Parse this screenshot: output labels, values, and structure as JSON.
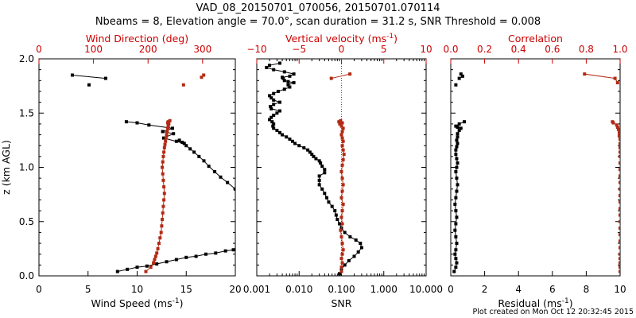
{
  "title_line1": "VAD_08_20150701_070056, 20150701.070114",
  "title_line2": "Nbeams = 8, Elevation angle = 70.0°, scan duration = 31.2 s, SNR Threshold = 0.008",
  "footer": "Plot created on Mon Oct 12 20:32:45 2015",
  "colors": {
    "black": "#000000",
    "red": "#b22a14",
    "axis_top": "#cc0000"
  },
  "chart_data": [
    {
      "type": "line",
      "panel": "wind",
      "ylabel": "z (km AGL)",
      "ylim": [
        0,
        2.0
      ],
      "yticks": [
        "0.0",
        "0.5",
        "1.0",
        "1.5",
        "2.0"
      ],
      "xlabel": "Wind Speed (ms",
      "xlabel_sup": "-1",
      "xlabel_end": ")",
      "xlim": [
        0,
        20
      ],
      "xticks": [
        "0",
        "5",
        "10",
        "15",
        "20"
      ],
      "top_label": "Wind Direction (deg)",
      "top_lim": [
        0,
        360
      ],
      "top_ticks": [
        "0",
        "100",
        "200",
        "300"
      ],
      "series": [
        {
          "color": "black",
          "x": [
            8.0,
            9.0,
            10.0,
            11.0,
            12.0,
            13.0,
            14.0,
            15.0,
            16.0,
            17.0,
            18.0,
            19.0,
            19.8,
            null,
            20.0,
            19.2,
            18.5,
            17.9,
            17.3,
            16.8,
            16.3,
            15.8,
            15.4,
            15.0,
            14.6,
            14.3,
            14.0,
            14.8,
            12.7,
            13.7,
            12.6,
            13.6,
            11.2,
            10.0,
            8.9,
            null,
            3.4,
            6.8,
            null,
            5.1
          ],
          "y": [
            0.04,
            0.06,
            0.08,
            0.09,
            0.11,
            0.13,
            0.15,
            0.17,
            0.18,
            0.2,
            0.21,
            0.23,
            0.24,
            null,
            0.8,
            0.86,
            0.91,
            0.96,
            1.01,
            1.06,
            1.1,
            1.14,
            1.17,
            1.2,
            1.23,
            1.25,
            1.24,
            1.22,
            1.27,
            1.31,
            1.33,
            1.36,
            1.39,
            1.41,
            1.42,
            null,
            1.85,
            1.82,
            null,
            1.76
          ]
        },
        {
          "color": "red",
          "x": [
            196,
            205,
            210,
            212,
            214,
            216,
            218,
            220,
            222,
            224,
            225,
            226,
            227,
            228,
            229,
            230,
            229,
            228,
            227,
            226,
            227,
            228,
            229,
            230,
            231,
            232,
            233,
            234,
            235,
            236,
            237,
            238,
            236,
            237,
            240,
            null,
            298,
            302,
            null,
            265
          ],
          "y": [
            0.04,
            0.08,
            0.12,
            0.15,
            0.18,
            0.21,
            0.25,
            0.3,
            0.35,
            0.4,
            0.46,
            0.52,
            0.58,
            0.64,
            0.7,
            0.76,
            0.82,
            0.88,
            0.94,
            1.0,
            1.05,
            1.1,
            1.14,
            1.18,
            1.21,
            1.24,
            1.27,
            1.3,
            1.33,
            1.36,
            1.38,
            1.4,
            1.41,
            1.42,
            1.43,
            null,
            1.83,
            1.85,
            null,
            1.76
          ]
        }
      ]
    },
    {
      "type": "line",
      "panel": "vertical",
      "xlabel": "SNR",
      "xlim": [
        0.001,
        10
      ],
      "xscale": "log",
      "xticks": [
        "0.001",
        "0.010",
        "0.100",
        "1.000",
        "10.000"
      ],
      "top_label": "Vertical velocity (ms",
      "top_label_sup": "-1",
      "top_label_end": ")",
      "top_lim": [
        -10,
        10
      ],
      "top_ticks": [
        "−10",
        "−5",
        "0",
        "5",
        "10"
      ],
      "series": [
        {
          "color": "black",
          "x": [
            0.09,
            0.1,
            0.12,
            0.15,
            0.2,
            0.25,
            0.3,
            0.28,
            0.22,
            0.16,
            0.12,
            0.1,
            0.09,
            0.08,
            0.075,
            0.07,
            0.06,
            0.05,
            0.045,
            0.04,
            0.035,
            0.03,
            0.03,
            0.03,
            0.04,
            0.04,
            0.035,
            0.032,
            0.03,
            0.025,
            0.022,
            0.02,
            0.018,
            0.016,
            0.013,
            0.01,
            0.008,
            0.007,
            0.006,
            0.005,
            0.004,
            0.0035,
            0.003,
            0.0025,
            0.0024,
            0.0025,
            0.0023,
            0.002,
            0.0022,
            0.0025,
            0.003,
            0.0035,
            0.0022,
            0.0021,
            0.0025,
            0.0035,
            0.0025,
            0.0022,
            0.002,
            0.0025,
            0.0032,
            0.0045,
            0.006,
            0.0055,
            0.0075,
            0.0055,
            0.0045,
            0.0042,
            0.004,
            0.006,
            0.0075,
            0.0045,
            0.0025,
            0.0017,
            0.002,
            0.0035
          ],
          "y": [
            0.02,
            0.06,
            0.1,
            0.14,
            0.18,
            0.22,
            0.26,
            0.3,
            0.33,
            0.36,
            0.4,
            0.44,
            0.48,
            0.52,
            0.56,
            0.6,
            0.64,
            0.68,
            0.72,
            0.76,
            0.8,
            0.84,
            0.88,
            0.92,
            0.95,
            0.98,
            1.01,
            1.04,
            1.06,
            1.08,
            1.1,
            1.12,
            1.14,
            1.16,
            1.18,
            1.2,
            1.22,
            1.24,
            1.26,
            1.28,
            1.3,
            1.32,
            1.34,
            1.36,
            1.38,
            1.4,
            1.42,
            1.44,
            1.46,
            1.48,
            1.5,
            1.52,
            1.54,
            1.56,
            1.58,
            1.6,
            1.62,
            1.64,
            1.66,
            1.68,
            1.7,
            1.72,
            1.74,
            1.76,
            1.78,
            1.79,
            1.8,
            1.82,
            1.83,
            1.84,
            1.86,
            1.88,
            1.9,
            1.92,
            1.94,
            1.96
          ]
        },
        {
          "color": "red",
          "x": [
            0.0,
            0.0,
            0.1,
            0.0,
            0.1,
            0.2,
            0.1,
            0.0,
            -0.1,
            0.1,
            0.0,
            0.1,
            0.2,
            0.0,
            0.1,
            0.2,
            0.1,
            0.0,
            0.1,
            0.2,
            0.3,
            0.2,
            0.1,
            0.2,
            0.1,
            0.0,
            0.1,
            0.2,
            0.0,
            -0.2,
            -0.3,
            -0.1,
            0.1,
            null,
            -1.2,
            1.0
          ],
          "y": [
            0.04,
            0.08,
            0.12,
            0.16,
            0.2,
            0.24,
            0.3,
            0.36,
            0.42,
            0.48,
            0.54,
            0.6,
            0.66,
            0.72,
            0.78,
            0.84,
            0.9,
            0.96,
            1.02,
            1.07,
            1.12,
            1.16,
            1.2,
            1.24,
            1.27,
            1.3,
            1.33,
            1.36,
            1.38,
            1.4,
            1.42,
            1.43,
            1.41,
            null,
            1.82,
            1.86
          ]
        }
      ]
    },
    {
      "type": "line",
      "panel": "residual",
      "xlabel": "Residual (ms",
      "xlabel_sup": "-1",
      "xlabel_end": ")",
      "xlim": [
        0,
        10
      ],
      "xticks": [
        "0",
        "2",
        "4",
        "6",
        "8",
        "10"
      ],
      "top_label": "Correlation",
      "top_lim": [
        0,
        1.0
      ],
      "top_ticks": [
        "0.0",
        "0.2",
        "0.4",
        "0.6",
        "0.8",
        "1.0"
      ],
      "series": [
        {
          "color": "black",
          "x": [
            0.2,
            0.3,
            0.35,
            0.3,
            0.25,
            0.3,
            0.35,
            0.3,
            0.25,
            0.3,
            0.35,
            0.3,
            0.25,
            0.3,
            0.35,
            0.4,
            0.35,
            0.3,
            0.35,
            0.4,
            0.35,
            0.3,
            0.3,
            0.35,
            0.4,
            0.35,
            0.4,
            0.4,
            0.5,
            0.6,
            0.4,
            0.3,
            0.5,
            0.8,
            null,
            0.5,
            0.7,
            0.6,
            null,
            0.3
          ],
          "y": [
            0.04,
            0.08,
            0.12,
            0.16,
            0.2,
            0.24,
            0.3,
            0.36,
            0.42,
            0.48,
            0.54,
            0.6,
            0.66,
            0.72,
            0.78,
            0.84,
            0.9,
            0.96,
            1.0,
            1.04,
            1.08,
            1.12,
            1.16,
            1.19,
            1.22,
            1.25,
            1.28,
            1.31,
            1.34,
            1.36,
            1.37,
            1.38,
            1.4,
            1.42,
            null,
            1.82,
            1.84,
            1.86,
            null,
            1.76
          ]
        },
        {
          "color": "red",
          "x": [
            1.0,
            1.0,
            1.0,
            1.0,
            1.0,
            1.0,
            1.0,
            1.0,
            1.0,
            1.0,
            1.0,
            1.0,
            1.0,
            1.0,
            1.0,
            1.0,
            1.0,
            1.0,
            1.0,
            1.0,
            1.0,
            1.0,
            1.0,
            1.0,
            0.995,
            0.995,
            0.99,
            0.985,
            0.98,
            0.96,
            0.955,
            null,
            0.79,
            0.97,
            0.985
          ],
          "y": [
            0.04,
            0.08,
            0.12,
            0.16,
            0.2,
            0.26,
            0.32,
            0.38,
            0.44,
            0.5,
            0.56,
            0.62,
            0.68,
            0.74,
            0.8,
            0.86,
            0.92,
            0.98,
            1.04,
            1.1,
            1.14,
            1.18,
            1.22,
            1.26,
            1.29,
            1.32,
            1.35,
            1.37,
            1.39,
            1.41,
            1.42,
            null,
            1.86,
            1.82,
            1.78
          ]
        }
      ]
    }
  ]
}
